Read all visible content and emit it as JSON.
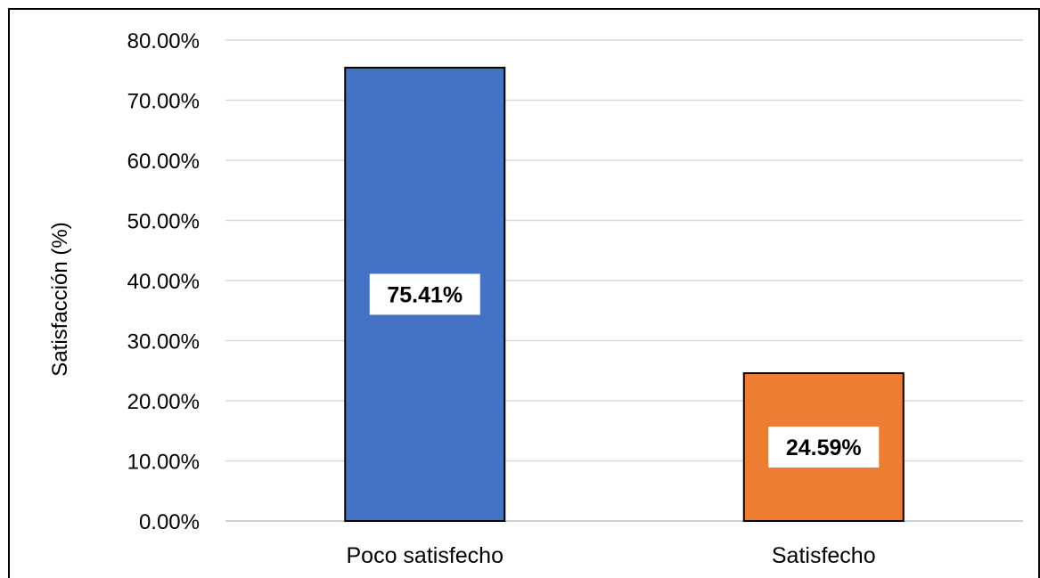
{
  "chart_data": {
    "type": "bar",
    "categories": [
      "Poco satisfecho",
      "Satisfecho"
    ],
    "values": [
      75.41,
      24.59
    ],
    "data_labels": [
      "75.41%",
      "24.59%"
    ],
    "colors": [
      "#4472C4",
      "#ED7D31"
    ],
    "ylabel": "Satisfacción (%)",
    "xlabel": "",
    "ylim": [
      0,
      80
    ],
    "yticks": [
      "0.00%",
      "10.00%",
      "20.00%",
      "30.00%",
      "40.00%",
      "50.00%",
      "60.00%",
      "70.00%",
      "80.00%"
    ],
    "grid": true,
    "legend": "none"
  }
}
